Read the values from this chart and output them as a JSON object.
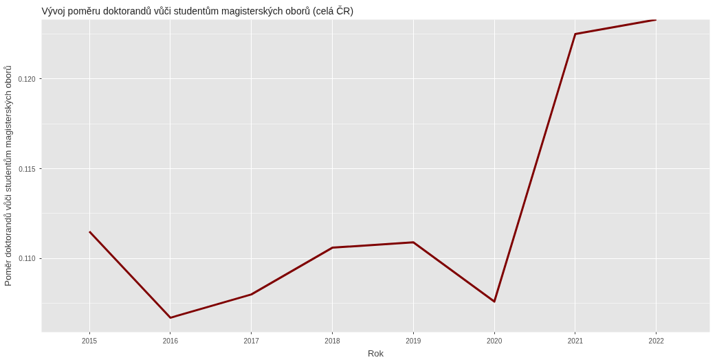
{
  "chart_data": {
    "type": "line",
    "title": "Vývoj poměru doktorandů vůči studentům magisterských oborů (celá ČR)",
    "xlabel": "Rok",
    "ylabel": "Poměr doktorandů vůči studentům magisterských oborů",
    "x": [
      2015,
      2016,
      2017,
      2018,
      2019,
      2020,
      2021,
      2022
    ],
    "series": [
      {
        "color": "#7f0000",
        "values": [
          0.1115,
          0.1067,
          0.108,
          0.1106,
          0.1109,
          0.1076,
          0.1225,
          0.1233
        ]
      }
    ],
    "xlim": [
      2014.41,
      2022.66
    ],
    "ylim": [
      0.1059,
      0.1233
    ],
    "xticks": [
      2015,
      2016,
      2017,
      2018,
      2019,
      2020,
      2021,
      2022
    ],
    "yticks": [
      {
        "value": 0.11,
        "label": "0.110"
      },
      {
        "value": 0.115,
        "label": "0.115"
      },
      {
        "value": 0.12,
        "label": "0.120"
      }
    ],
    "grid": true,
    "line_style": "solid"
  }
}
